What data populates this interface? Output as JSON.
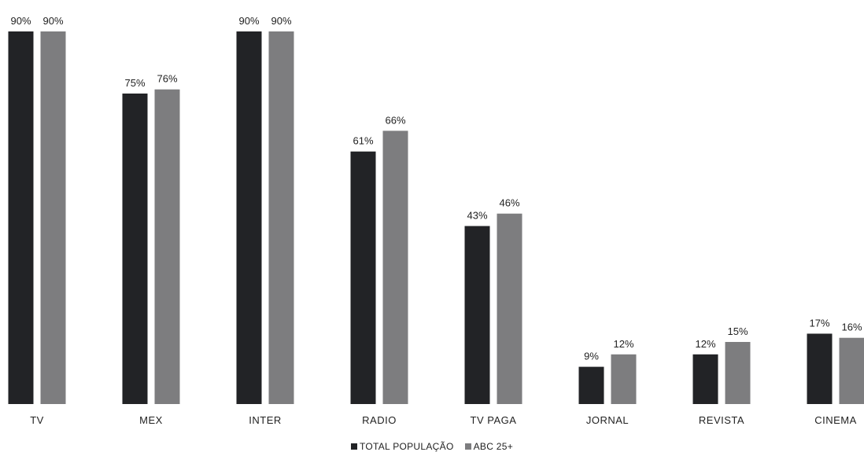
{
  "chart_data": {
    "type": "bar",
    "categories": [
      "TV",
      "MEX",
      "INTER",
      "RADIO",
      "TV PAGA",
      "JORNAL",
      "REVISTA",
      "CINEMA"
    ],
    "series": [
      {
        "name": "TOTAL POPULAÇÃO",
        "color": "#222326",
        "values": [
          90,
          75,
          90,
          61,
          43,
          9,
          12,
          17
        ]
      },
      {
        "name": "ABC 25+",
        "color": "#7d7d7f",
        "values": [
          90,
          76,
          90,
          66,
          46,
          12,
          15,
          16
        ]
      }
    ],
    "value_suffix": "%",
    "ylim": [
      0,
      90
    ],
    "grid": false,
    "legend_position": "bottom-center"
  }
}
